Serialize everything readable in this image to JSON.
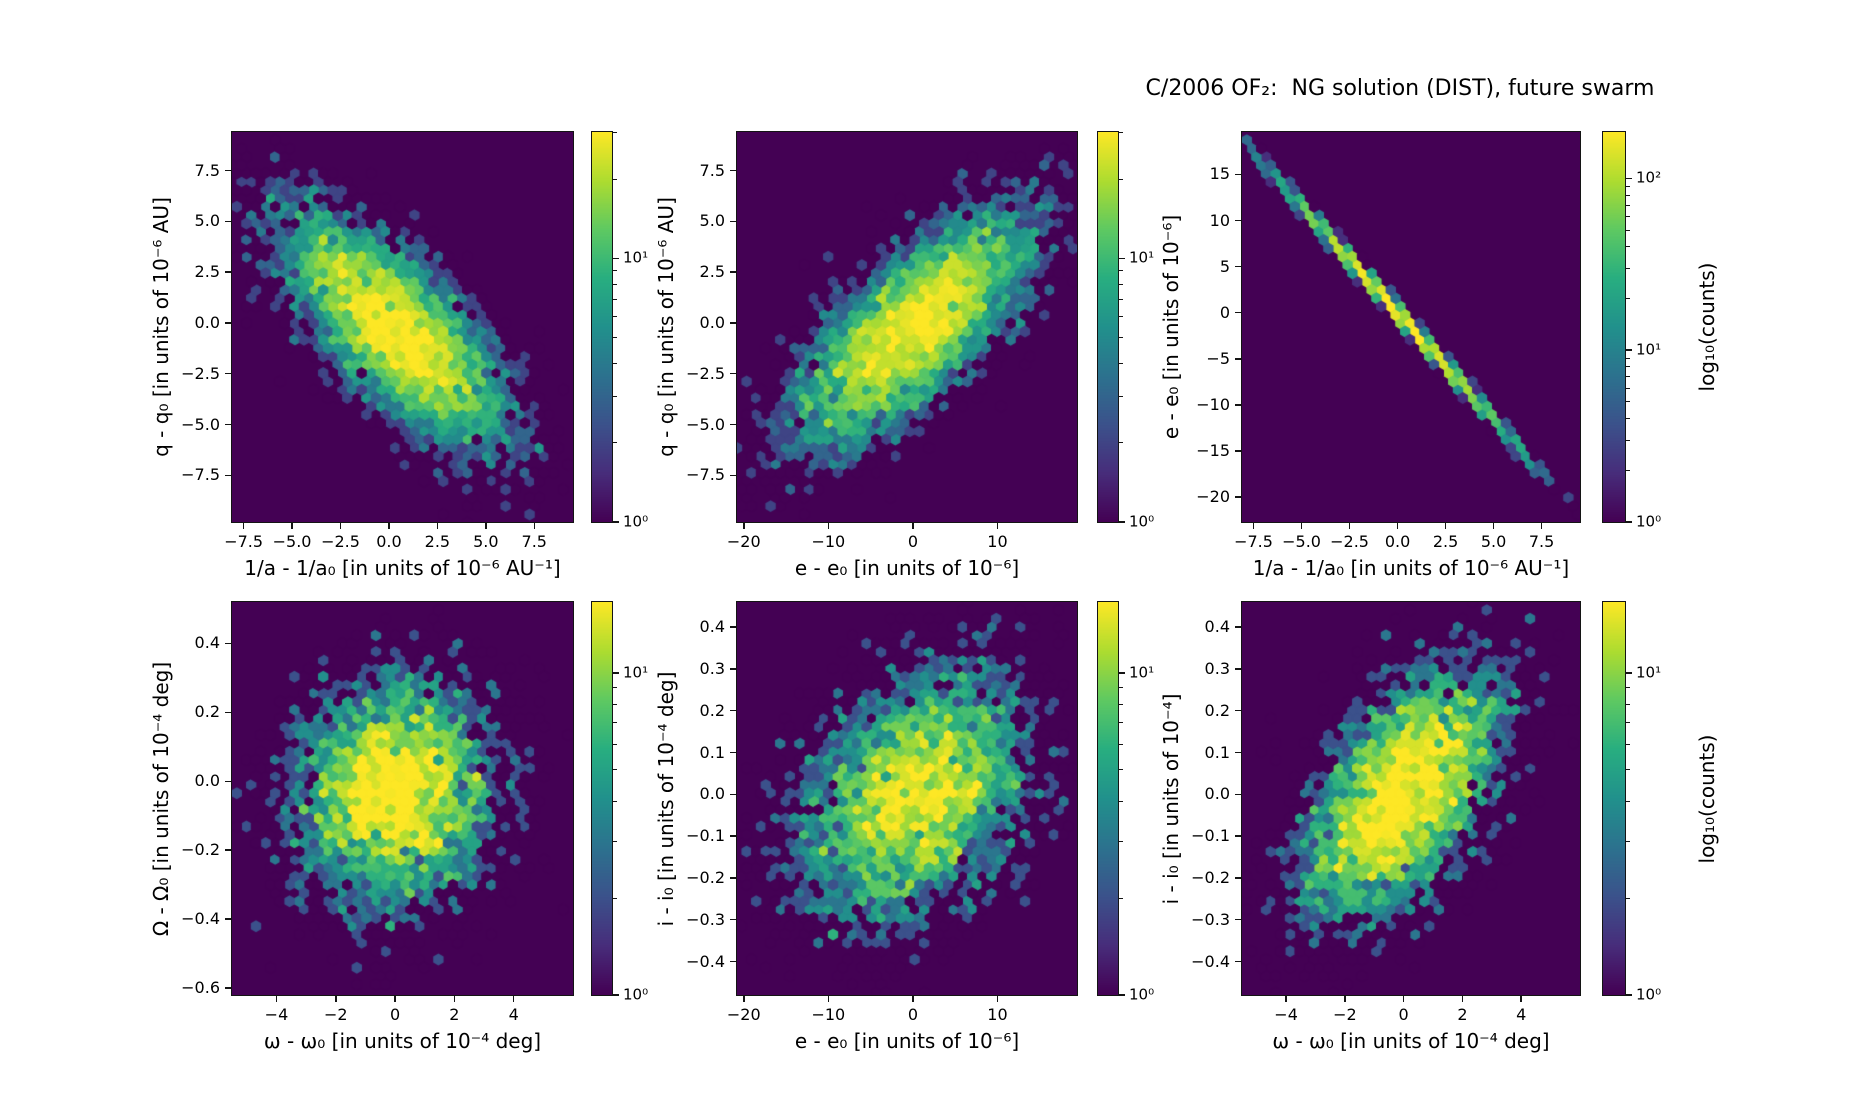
{
  "title": "C/2006 OF₂:  NG solution (DIST), future swarm",
  "colors": {
    "background": "#ffffff",
    "hex_background": "#440154",
    "spine": "#141414",
    "text": "#000000",
    "viridis_stops": [
      "#440154",
      "#472d7b",
      "#3b528b",
      "#2c728e",
      "#21918c",
      "#28ae80",
      "#5ec962",
      "#addc30",
      "#fde725"
    ]
  },
  "chart_data": {
    "type": "heatmap",
    "subtype": "hexbin-grid",
    "colormap": "viridis",
    "color_scale": "log10(counts)",
    "grid": {
      "rows": 2,
      "cols": 3
    },
    "plots": [
      {
        "id": "q-vs-inva",
        "xlabel": "1/a - 1/a₀ [in units of 10⁻⁶ AU⁻¹]",
        "ylabel": "q - q₀ [in units of 10⁻⁶ AU]",
        "xlim": [
          -8.1,
          9.5
        ],
        "ylim": [
          -9.8,
          9.4
        ],
        "xticks": {
          "values": [
            -7.5,
            -5.0,
            -2.5,
            0.0,
            2.5,
            5.0,
            7.5
          ],
          "labels": [
            "−7.5",
            "−5.0",
            "−2.5",
            "0.0",
            "2.5",
            "5.0",
            "7.5"
          ]
        },
        "yticks": {
          "values": [
            7.5,
            5.0,
            2.5,
            0.0,
            -2.5,
            -5.0,
            -7.5
          ],
          "labels": [
            "7.5",
            "5.0",
            "2.5",
            "0.0",
            "−2.5",
            "−5.0",
            "−7.5"
          ]
        },
        "distribution": {
          "kind": "gauss",
          "n": 6000,
          "seed": 101,
          "mx": 0.3,
          "my": -0.3,
          "sx": 2.9,
          "sy": 2.9,
          "rho": -0.73
        },
        "colorbar": {
          "log_max": 1.48,
          "tick_exps": [
            0,
            1
          ],
          "tick_labels": [
            "10⁰",
            "10¹"
          ],
          "label": ""
        }
      },
      {
        "id": "q-vs-e",
        "xlabel": "e - e₀ [in units of 10⁻⁶]",
        "ylabel": "q - q₀ [in units of 10⁻⁶ AU]",
        "xlim": [
          -20.8,
          19.4
        ],
        "ylim": [
          -9.8,
          9.4
        ],
        "xticks": {
          "values": [
            -20,
            -10,
            0,
            10
          ],
          "labels": [
            "−20",
            "−10",
            "0",
            "10"
          ]
        },
        "yticks": {
          "values": [
            7.5,
            5.0,
            2.5,
            0.0,
            -2.5,
            -5.0,
            -7.5
          ],
          "labels": [
            "7.5",
            "5.0",
            "2.5",
            "0.0",
            "−2.5",
            "−5.0",
            "−7.5"
          ]
        },
        "distribution": {
          "kind": "gauss",
          "n": 6000,
          "seed": 202,
          "mx": 0.0,
          "my": -0.3,
          "sx": 7.0,
          "sy": 2.9,
          "rho": 0.73
        },
        "colorbar": {
          "log_max": 1.48,
          "tick_exps": [
            0,
            1
          ],
          "tick_labels": [
            "10⁰",
            "10¹"
          ],
          "label": ""
        }
      },
      {
        "id": "e-vs-inva",
        "xlabel": "1/a - 1/a₀ [in units of 10⁻⁶ AU⁻¹]",
        "ylabel": "e - e₀ [in units of 10⁻⁶]",
        "xlim": [
          -8.1,
          9.5
        ],
        "ylim": [
          -22.7,
          19.6
        ],
        "xticks": {
          "values": [
            -7.5,
            -5.0,
            -2.5,
            0.0,
            2.5,
            5.0,
            7.5
          ],
          "labels": [
            "−7.5",
            "−5.0",
            "−2.5",
            "0.0",
            "2.5",
            "5.0",
            "7.5"
          ]
        },
        "yticks": {
          "values": [
            15,
            10,
            5,
            0,
            -5,
            -10,
            -15,
            -20
          ],
          "labels": [
            "15",
            "10",
            "5",
            "0",
            "−5",
            "−10",
            "−15",
            "−20"
          ]
        },
        "distribution": {
          "kind": "line",
          "n": 4500,
          "seed": 303,
          "sx": 2.9,
          "slope": -2.32,
          "noise": 0.3
        },
        "colorbar": {
          "log_max": 2.27,
          "tick_exps": [
            0,
            1,
            2
          ],
          "tick_labels": [
            "10⁰",
            "10¹",
            "10²"
          ],
          "label": "log₁₀(counts)"
        }
      },
      {
        "id": "Omega-vs-omega",
        "xlabel": "ω - ω₀ [in units of 10⁻⁴ deg]",
        "ylabel": "Ω - Ω₀ [in units of 10⁻⁴ deg]",
        "xlim": [
          -5.5,
          6.0
        ],
        "ylim": [
          -0.62,
          0.52
        ],
        "xticks": {
          "values": [
            -4,
            -2,
            0,
            2,
            4
          ],
          "labels": [
            "−4",
            "−2",
            "0",
            "2",
            "4"
          ]
        },
        "yticks": {
          "values": [
            0.4,
            0.2,
            0.0,
            -0.2,
            -0.4,
            -0.6
          ],
          "labels": [
            "0.4",
            "0.2",
            "0.0",
            "−0.2",
            "−0.4",
            "−0.6"
          ]
        },
        "distribution": {
          "kind": "gauss",
          "n": 4500,
          "seed": 404,
          "mx": 0.0,
          "my": -0.03,
          "sx": 1.75,
          "sy": 0.17,
          "rho": 0.05
        },
        "colorbar": {
          "log_max": 1.22,
          "tick_exps": [
            0,
            1
          ],
          "tick_labels": [
            "10⁰",
            "10¹"
          ],
          "label": ""
        }
      },
      {
        "id": "i-vs-e",
        "xlabel": "e - e₀ [in units of 10⁻⁶]",
        "ylabel": "i - i₀ [in units of 10⁻⁴ deg]",
        "xlim": [
          -20.8,
          19.4
        ],
        "ylim": [
          -0.48,
          0.46
        ],
        "xticks": {
          "values": [
            -20,
            -10,
            0,
            10
          ],
          "labels": [
            "−20",
            "−10",
            "0",
            "10"
          ]
        },
        "yticks": {
          "values": [
            0.4,
            0.3,
            0.2,
            0.1,
            0.0,
            -0.1,
            -0.2,
            -0.3,
            -0.4
          ],
          "labels": [
            "0.4",
            "0.3",
            "0.2",
            "0.1",
            "0.0",
            "−0.1",
            "−0.2",
            "−0.3",
            "−0.4"
          ]
        },
        "distribution": {
          "kind": "gauss",
          "n": 4500,
          "seed": 505,
          "mx": 0.0,
          "my": 0.0,
          "sx": 7.0,
          "sy": 0.155,
          "rho": 0.33
        },
        "colorbar": {
          "log_max": 1.22,
          "tick_exps": [
            0,
            1
          ],
          "tick_labels": [
            "10⁰",
            "10¹"
          ],
          "label": ""
        }
      },
      {
        "id": "i-vs-omega",
        "xlabel": "ω - ω₀ [in units of 10⁻⁴ deg]",
        "ylabel": "i - i₀ [in units of 10⁻⁴]",
        "xlim": [
          -5.5,
          6.0
        ],
        "ylim": [
          -0.48,
          0.46
        ],
        "xticks": {
          "values": [
            -4,
            -2,
            0,
            2,
            4
          ],
          "labels": [
            "−4",
            "−2",
            "0",
            "2",
            "4"
          ]
        },
        "yticks": {
          "values": [
            0.4,
            0.3,
            0.2,
            0.1,
            0.0,
            -0.1,
            -0.2,
            -0.3,
            -0.4
          ],
          "labels": [
            "0.4",
            "0.3",
            "0.2",
            "0.1",
            "0.0",
            "−0.1",
            "−0.2",
            "−0.3",
            "−0.4"
          ]
        },
        "distribution": {
          "kind": "gauss",
          "n": 4500,
          "seed": 606,
          "mx": 0.0,
          "my": 0.0,
          "sx": 1.75,
          "sy": 0.155,
          "rho": 0.55
        },
        "colorbar": {
          "log_max": 1.22,
          "tick_exps": [
            0,
            1
          ],
          "tick_labels": [
            "10⁰",
            "10¹"
          ],
          "label": "log₁₀(counts)"
        }
      }
    ]
  }
}
